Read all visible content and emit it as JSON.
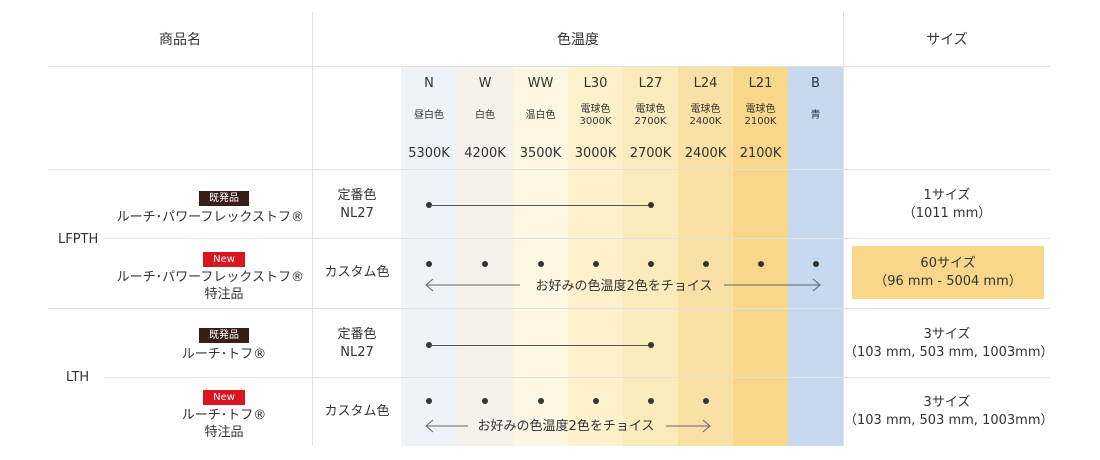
{
  "header": {
    "product_name": "商品名",
    "color_temp": "色温度",
    "size": "サイズ"
  },
  "colors": [
    {
      "code": "N",
      "name": "昼白色",
      "kelvin": "5300K",
      "bg": "#eef3fa"
    },
    {
      "code": "W",
      "name": "白色",
      "kelvin": "4200K",
      "bg": "#f6f2e9"
    },
    {
      "code": "WW",
      "name": "温白色",
      "kelvin": "3500K",
      "bg": "#fcf6e3"
    },
    {
      "code": "L30",
      "name": "電球色",
      "temp": "3000K",
      "kelvin": "3000K",
      "bg": "#fdf1cc"
    },
    {
      "code": "L27",
      "name": "電球色",
      "temp": "2700K",
      "kelvin": "2700K",
      "bg": "#fbeabc"
    },
    {
      "code": "L24",
      "name": "電球色",
      "temp": "2400K",
      "kelvin": "2400K",
      "bg": "#f9e0a4"
    },
    {
      "code": "L21",
      "name": "電球色",
      "temp": "2100K",
      "kelvin": "2100K",
      "bg": "#f8d68a"
    },
    {
      "code": "B",
      "name": "青",
      "kelvin": "",
      "bg": "#c7d8ef"
    }
  ],
  "groups": [
    {
      "name": "LFPTH"
    },
    {
      "name": "LTH"
    }
  ],
  "rows": [
    {
      "badge": "既発品",
      "badge_type": "old",
      "product": "ルーチ･パワーフレックストフ®",
      "product2": "",
      "type": "定番色",
      "type2": "NL27",
      "size": "1サイズ",
      "size2": "（1011 mm）"
    },
    {
      "badge": "New",
      "badge_type": "new",
      "product": "ルーチ･パワーフレックストフ®",
      "product2": "特注品",
      "type": "カスタム色",
      "type2": "",
      "size": "60サイズ",
      "size2": "（96 mm - 5004 mm）",
      "choice": "お好みの色温度2色をチョイス"
    },
    {
      "badge": "既発品",
      "badge_type": "old",
      "product": "ルーチ･トフ®",
      "product2": "",
      "type": "定番色",
      "type2": "NL27",
      "size": "3サイズ",
      "size2": "（103 mm, 503 mm, 1003mm）"
    },
    {
      "badge": "New",
      "badge_type": "new",
      "product": "ルーチ･トフ®",
      "product2": "特注品",
      "type": "カスタム色",
      "type2": "",
      "size": "3サイズ",
      "size2": "（103 mm, 503 mm, 1003mm）",
      "choice": "お好みの色温度2色をチョイス"
    }
  ],
  "highlight_color": "#f8d68a"
}
